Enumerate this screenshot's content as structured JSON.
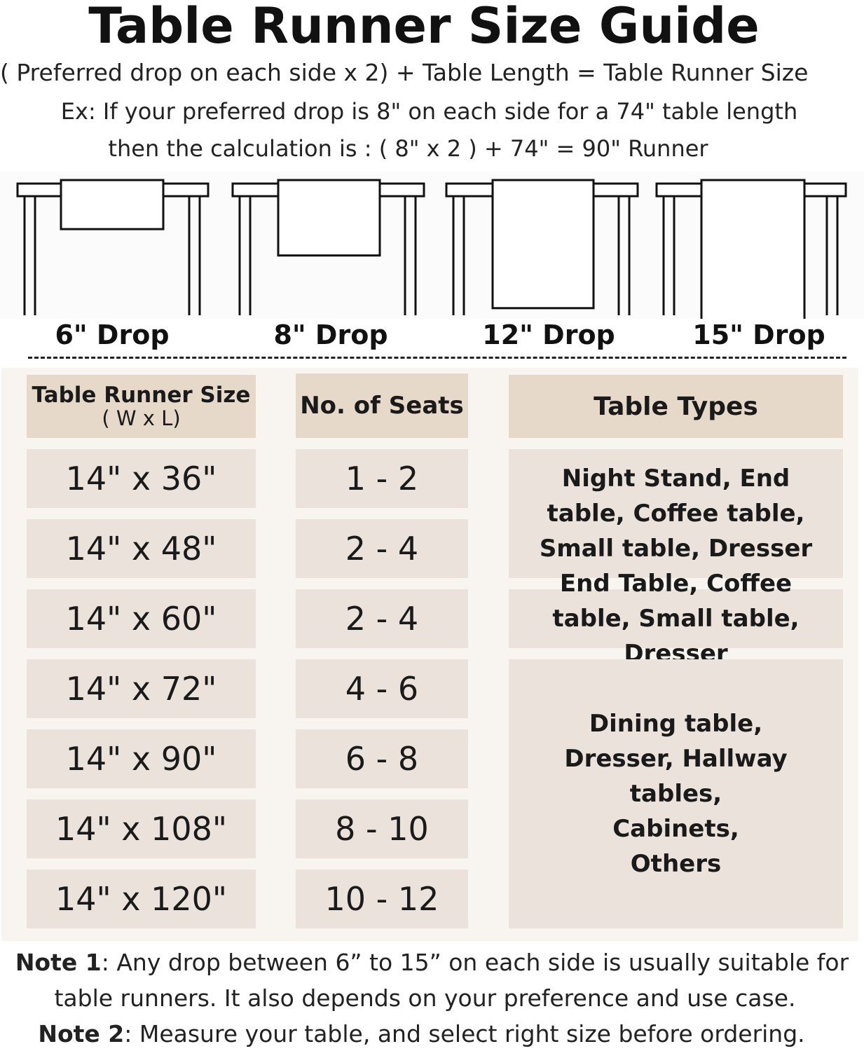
{
  "title": "Table Runner Size Guide",
  "formula": "( Preferred drop on each side x 2) + Table Length = Table Runner Size",
  "example_line1": "Ex: If your preferred drop is 8\" on each side for a 74\" table length",
  "example_line2": "then the calculation is : ( 8\" x 2 ) + 74\" = 90\" Runner",
  "drops": [
    {
      "label": "6\" Drop",
      "inches": 6
    },
    {
      "label": "8\" Drop",
      "inches": 8
    },
    {
      "label": "12\" Drop",
      "inches": 12
    },
    {
      "label": "15\" Drop",
      "inches": 15
    }
  ],
  "table": {
    "headers": {
      "size": "Table Runner Size",
      "size_sub": "( W x L)",
      "seats": "No. of Seats",
      "types": "Table Types"
    },
    "rows": [
      {
        "size": "14\" x 36\"",
        "seats": "1 - 2"
      },
      {
        "size": "14\" x 48\"",
        "seats": "2 - 4"
      },
      {
        "size": "14\" x 60\"",
        "seats": "2 - 4"
      },
      {
        "size": "14\" x 72\"",
        "seats": "4 - 6"
      },
      {
        "size": "14\" x 90\"",
        "seats": "6 - 8"
      },
      {
        "size": "14\" x 108\"",
        "seats": "8 - 10"
      },
      {
        "size": "14\" x 120\"",
        "seats": "10 - 12"
      }
    ],
    "types": [
      "Night Stand, End table, Coffee table, Small table, Dresser",
      "End Table, Coffee table, Small table, Dresser",
      "Dining table, Dresser, Hallway tables, Cabinets, Others"
    ]
  },
  "colors": {
    "header": "#e6d9c9",
    "cell": "#ebe2dc",
    "panel": "#f8f5f1"
  },
  "notes": {
    "note1_label": "Note 1",
    "note1_text": ": Any drop between 6” to 15” on each side is usually suitable for",
    "note1_text2": "table runners. It also depends on your preference and use case.",
    "note2_label": "Note 2",
    "note2_text": ": Measure your table, and select right size before ordering."
  }
}
